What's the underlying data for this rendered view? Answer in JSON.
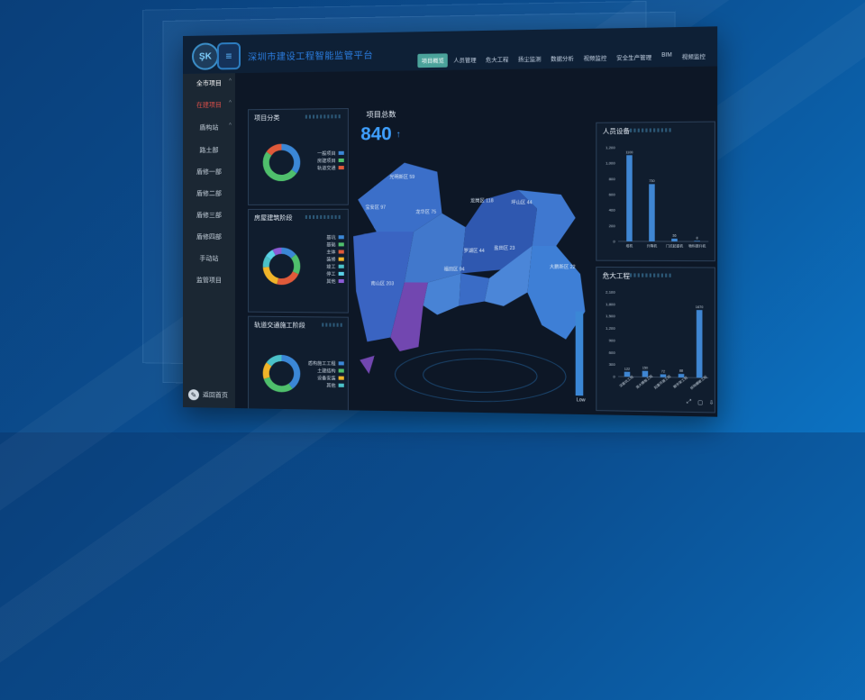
{
  "header": {
    "title": "深圳市建设工程智能监管平台",
    "logo_text": "ŞK",
    "tabs": [
      "项目概览",
      "人员管理",
      "危大工程",
      "扬尘监测",
      "数据分析",
      "视频监控",
      "安全生产管理",
      "BIM",
      "视频监控"
    ],
    "active_tab_index": 0
  },
  "sidebar": {
    "items": [
      {
        "label": "全市项目",
        "style": "top"
      },
      {
        "label": "在建项目",
        "style": "red"
      },
      {
        "label": "盾构站",
        "style": "normal"
      },
      {
        "label": "路土部",
        "style": "normal"
      },
      {
        "label": "盾修一部",
        "style": "normal"
      },
      {
        "label": "盾修二部",
        "style": "normal"
      },
      {
        "label": "盾修三部",
        "style": "normal"
      },
      {
        "label": "盾修四部",
        "style": "normal"
      },
      {
        "label": "手动站",
        "style": "normal"
      },
      {
        "label": "监管项目",
        "style": "normal"
      }
    ],
    "footer_label": "返回首页"
  },
  "project_category": {
    "title": "项目分类",
    "legend": [
      "一般项目",
      "房建项目",
      "轨道交通"
    ],
    "colors": [
      "#3b87d6",
      "#4fbf6c",
      "#e05a3a"
    ],
    "values": [
      35,
      50,
      15
    ]
  },
  "building_stage": {
    "title": "房屋建筑阶段",
    "legend": [
      "基坑",
      "基础",
      "主体",
      "装修",
      "竣工",
      "停工",
      "其他"
    ],
    "colors": [
      "#3b87d6",
      "#4fbf6c",
      "#e05a3a",
      "#f0b429",
      "#4bc1c8",
      "#5ad1e6",
      "#8b5bd6"
    ],
    "values": [
      14,
      18,
      22,
      20,
      10,
      8,
      8
    ]
  },
  "rail_stage": {
    "title": "轨道交通施工阶段",
    "legend": [
      "盾构施工工程",
      "土建结构",
      "设备安装",
      "其他"
    ],
    "colors": [
      "#3b87d6",
      "#4fbf6c",
      "#f0b429",
      "#4bc1c8"
    ],
    "values": [
      40,
      30,
      15,
      15
    ]
  },
  "total": {
    "label": "项目总数",
    "value": "840",
    "arrow": "↑"
  },
  "map": {
    "districts": [
      "光明新区 59",
      "宝安区 97",
      "龙华区 75",
      "龙岗区 118",
      "坪山区 44",
      "盐田区 23",
      "罗湖区 44",
      "福田区 94",
      "南山区 203",
      "大鹏新区 22"
    ],
    "legend_low": "Low"
  },
  "personnel": {
    "title": "人员设备",
    "y_ticks": [
      "1,200",
      "1,000",
      "800",
      "600",
      "400",
      "200",
      "0"
    ],
    "categories": [
      "塔机",
      "升降机",
      "门式起重机",
      "物料提升机"
    ],
    "values": [
      1100,
      730,
      36,
      8
    ],
    "value_labels": [
      "1100",
      "730",
      "36",
      "8"
    ]
  },
  "danger": {
    "title": "危大工程",
    "y_ticks": [
      "2,100",
      "1,800",
      "1,500",
      "1,200",
      "900",
      "600",
      "300",
      "0"
    ],
    "categories": [
      "深基坑工程",
      "高大模板工程",
      "起重吊装工程",
      "脚手架工程",
      "拆除爆破工程"
    ],
    "values": [
      122,
      150,
      72,
      88,
      1670
    ],
    "value_labels": [
      "122",
      "150",
      "72",
      "88",
      "1670"
    ]
  },
  "colors": {
    "accent": "#3fa0ff",
    "active_tab": "#4ba39b",
    "danger": "#e05a3a"
  }
}
